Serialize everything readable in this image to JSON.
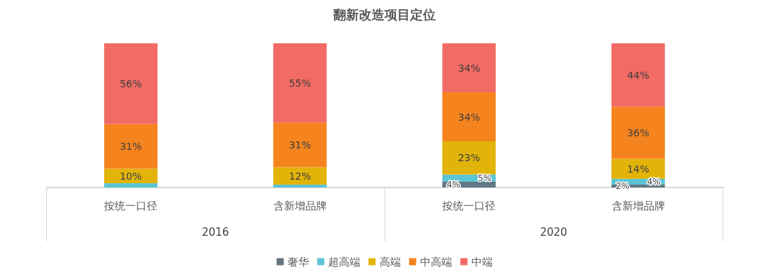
{
  "chart_data": {
    "type": "bar",
    "title": "翻新改造项目定位",
    "stacked": true,
    "tick_labels": "x",
    "legend": "bottom",
    "categories": [
      "按统一口径",
      "含新增品牌",
      "按统一口径",
      "含新增品牌"
    ],
    "annotations": [
      "2016",
      "2020"
    ],
    "series": [
      {
        "name": "奢华",
        "color": "#637683",
        "values": [
          0,
          0,
          4,
          2
        ],
        "value_labels": [
          null,
          null,
          "4%",
          "2%"
        ]
      },
      {
        "name": "超高端",
        "color": "#5bc5d4",
        "values": [
          3,
          2,
          5,
          4
        ],
        "value_labels": [
          null,
          null,
          "5%",
          "4%"
        ]
      },
      {
        "name": "高端",
        "color": "#e2b40a",
        "values": [
          10,
          12,
          23,
          14
        ],
        "value_labels": [
          "10%",
          "12%",
          "23%",
          "14%"
        ]
      },
      {
        "name": "中高端",
        "color": "#f5841f",
        "values": [
          31,
          31,
          34,
          36
        ],
        "value_labels": [
          "31%",
          "31%",
          "34%",
          "36%"
        ]
      },
      {
        "name": "中端",
        "color": "#f26b64",
        "values": [
          56,
          55,
          34,
          44
        ],
        "value_labels": [
          "56%",
          "55%",
          "34%",
          "44%"
        ]
      }
    ]
  }
}
